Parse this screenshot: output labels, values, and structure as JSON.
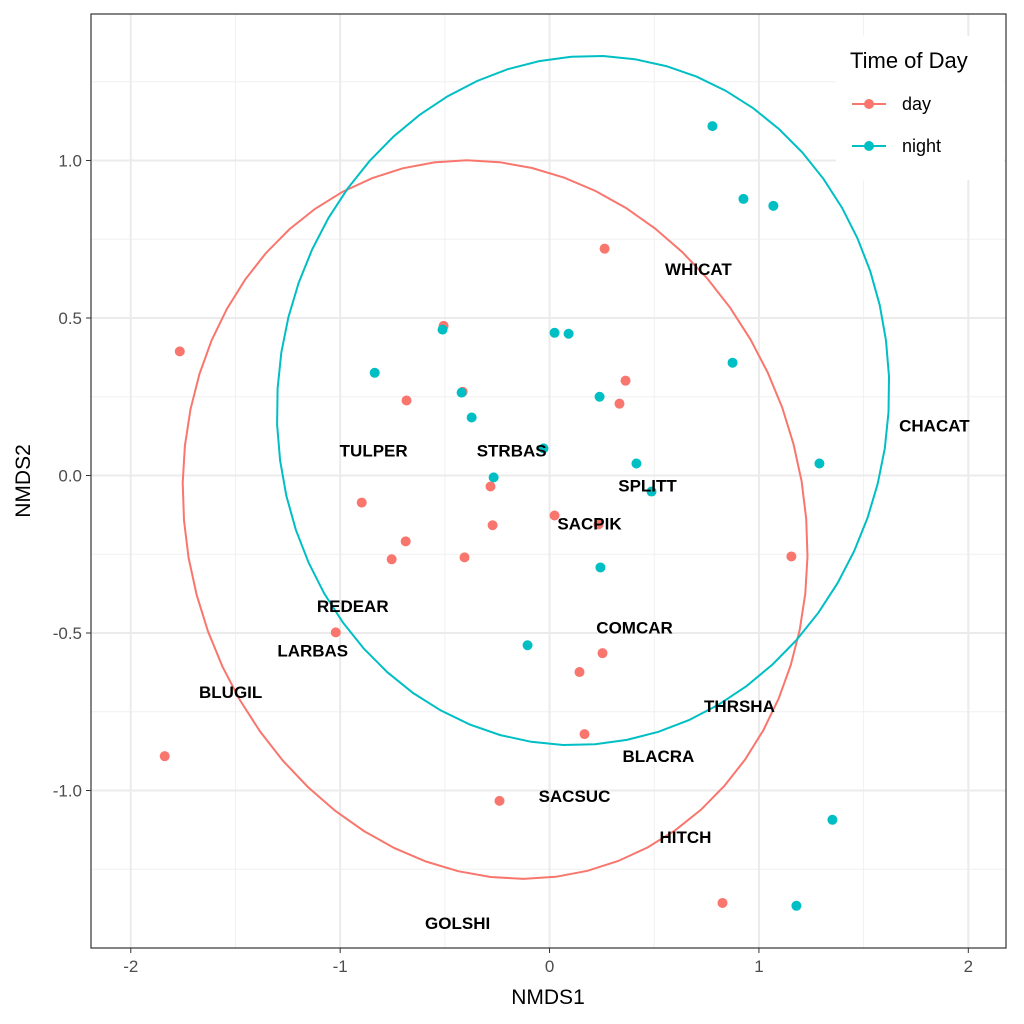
{
  "chart_data": {
    "type": "scatter",
    "xlabel": "NMDS1",
    "ylabel": "NMDS2",
    "xlim": [
      -2.19,
      2.18
    ],
    "ylim": [
      -1.5,
      1.465
    ],
    "xticks": [
      -2,
      -1,
      0,
      1,
      2
    ],
    "xtick_labels": [
      "-2",
      "-1",
      "0",
      "1",
      "2"
    ],
    "yticks": [
      -1.0,
      -0.5,
      0.0,
      0.5,
      1.0
    ],
    "ytick_labels": [
      "-1.0",
      "-0.5",
      "0.0",
      "0.5",
      "1.0"
    ],
    "grid": true,
    "legend": {
      "title": "Time of Day",
      "placement": "top-right",
      "entries": [
        "day",
        "night"
      ]
    },
    "series": [
      {
        "name": "day",
        "color": "#F8766D",
        "points": [
          [
            -1.766,
            0.394
          ],
          [
            -0.506,
            0.475
          ],
          [
            0.263,
            0.72
          ],
          [
            -0.683,
            0.238
          ],
          [
            -0.415,
            0.266
          ],
          [
            0.363,
            0.301
          ],
          [
            0.334,
            0.228
          ],
          [
            -0.897,
            -0.086
          ],
          [
            -0.282,
            -0.035
          ],
          [
            -0.272,
            -0.158
          ],
          [
            0.024,
            -0.127
          ],
          [
            0.234,
            -0.155
          ],
          [
            -0.687,
            -0.209
          ],
          [
            -0.754,
            -0.266
          ],
          [
            -0.406,
            -0.26
          ],
          [
            1.155,
            -0.257
          ],
          [
            -1.021,
            -0.498
          ],
          [
            0.253,
            -0.564
          ],
          [
            0.143,
            -0.624
          ],
          [
            0.167,
            -0.821
          ],
          [
            -1.838,
            -0.891
          ],
          [
            -0.239,
            -1.033
          ],
          [
            0.826,
            -1.357
          ]
        ],
        "ellipse": {
          "center": [
            -0.26,
            -0.14
          ],
          "radii": [
            1.5,
            1.13
          ],
          "rotation_deg": -9
        }
      },
      {
        "name": "night",
        "color": "#00BFC4",
        "points": [
          [
            0.778,
            1.109
          ],
          [
            0.926,
            0.878
          ],
          [
            1.069,
            0.856
          ],
          [
            -0.511,
            0.463
          ],
          [
            0.024,
            0.453
          ],
          [
            0.091,
            0.45
          ],
          [
            -0.835,
            0.326
          ],
          [
            0.874,
            0.358
          ],
          [
            -0.42,
            0.263
          ],
          [
            -0.372,
            0.184
          ],
          [
            0.239,
            0.25
          ],
          [
            -0.029,
            0.086
          ],
          [
            -0.267,
            -0.006
          ],
          [
            0.415,
            0.038
          ],
          [
            0.487,
            -0.051
          ],
          [
            1.289,
            0.038
          ],
          [
            0.243,
            -0.292
          ],
          [
            -0.105,
            -0.539
          ],
          [
            1.351,
            -1.093
          ],
          [
            1.179,
            -1.366
          ]
        ],
        "ellipse": {
          "center": [
            0.16,
            0.238
          ],
          "radii": [
            1.463,
            1.093
          ],
          "rotation_deg": 3
        }
      }
    ],
    "species_labels": [
      {
        "text": "WHICAT",
        "x": 0.711,
        "y": 0.656
      },
      {
        "text": "CHACAT",
        "x": 1.838,
        "y": 0.158
      },
      {
        "text": "TULPER",
        "x": -0.84,
        "y": 0.079
      },
      {
        "text": "STRBAS",
        "x": -0.181,
        "y": 0.079
      },
      {
        "text": "SPLITT",
        "x": 0.468,
        "y": -0.032
      },
      {
        "text": "SACPIK",
        "x": 0.191,
        "y": -0.152
      },
      {
        "text": "REDEAR",
        "x": -0.94,
        "y": -0.415
      },
      {
        "text": "COMCAR",
        "x": 0.406,
        "y": -0.482
      },
      {
        "text": "LARBAS",
        "x": -1.131,
        "y": -0.555
      },
      {
        "text": "BLUGIL",
        "x": -1.523,
        "y": -0.688
      },
      {
        "text": "THRSHA",
        "x": 0.907,
        "y": -0.732
      },
      {
        "text": "BLACRA",
        "x": 0.52,
        "y": -0.891
      },
      {
        "text": "SACSUC",
        "x": 0.119,
        "y": -1.017
      },
      {
        "text": "HITCH",
        "x": 0.649,
        "y": -1.147
      },
      {
        "text": "GOLSHI",
        "x": -0.439,
        "y": -1.42
      }
    ]
  }
}
